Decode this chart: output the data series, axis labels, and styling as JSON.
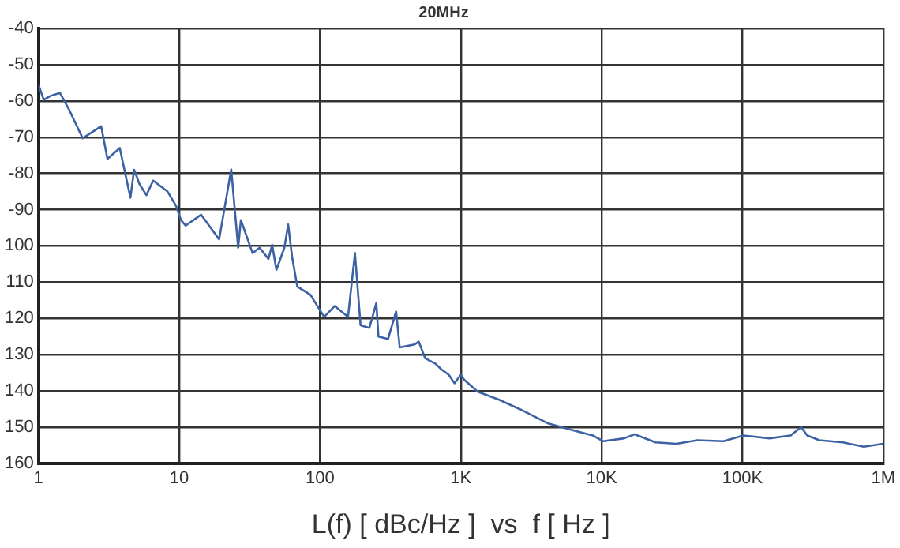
{
  "chart_data": {
    "type": "line",
    "title": "20MHz",
    "xlabel": "L(f) [ dBc/Hz ]  vs  f [ Hz ]",
    "log": "x",
    "grid": true,
    "legend": false,
    "marker": "none",
    "line_style": "solid",
    "xlim": [
      1,
      1000000
    ],
    "xticks": [
      1,
      10,
      100,
      {
        "value": 1000,
        "label": "1K"
      },
      {
        "value": 10000,
        "label": "10K"
      },
      {
        "value": 100000,
        "label": "100K"
      },
      {
        "value": 1000000,
        "label": "1M"
      }
    ],
    "ylim": [
      -160,
      -40
    ],
    "yticks": [
      -40,
      -50,
      -60,
      -70,
      -80,
      -90,
      {
        "value": -100,
        "label": "100"
      },
      {
        "value": -110,
        "label": "110"
      },
      {
        "value": -120,
        "label": "120"
      },
      {
        "value": -130,
        "label": "130"
      },
      {
        "value": -140,
        "label": "140"
      },
      {
        "value": -150,
        "label": "150"
      },
      {
        "value": -160,
        "label": "160"
      }
    ],
    "series": [
      {
        "color": "#3d62a3",
        "x": [
          1,
          1.09,
          1.22,
          1.42,
          1.65,
          2.06,
          2.79,
          3.09,
          3.78,
          4.5,
          4.78,
          5.2,
          5.84,
          6.53,
          8.26,
          9.5,
          10.3,
          11.1,
          14.3,
          19.2,
          23.4,
          26.2,
          27.4,
          33.2,
          37.2,
          43,
          45.7,
          49,
          55.8,
          59.4,
          63.2,
          68.9,
          85.5,
          107,
          127,
          158,
          177,
          194,
          224,
          251,
          260,
          304,
          347,
          368,
          470,
          502,
          558,
          661,
          724,
          822,
          901,
          1000,
          1060,
          1316,
          1854,
          2610,
          4180,
          6140,
          8650,
          10260,
          14450,
          17150,
          24150,
          34000,
          47900,
          73500,
          101600,
          156000,
          220000,
          261000,
          289000,
          352000,
          517000,
          728000,
          1000000
        ],
        "values": [
          -55.5,
          -59.7,
          -58.6,
          -57.8,
          -62.4,
          -70.3,
          -67,
          -76,
          -73,
          -86.7,
          -79,
          -82.8,
          -86,
          -82,
          -85,
          -89,
          -92.9,
          -94.4,
          -91.4,
          -98.2,
          -78.9,
          -100.5,
          -92.9,
          -102,
          -100.5,
          -103.6,
          -99.7,
          -106.6,
          -100.5,
          -94.1,
          -102.8,
          -111.2,
          -113.5,
          -119.6,
          -116.6,
          -119.6,
          -102,
          -121.9,
          -122.6,
          -115.8,
          -125,
          -125.7,
          -118.1,
          -128,
          -127.2,
          -126.4,
          -131,
          -132.5,
          -134,
          -135.6,
          -137.9,
          -135.6,
          -137,
          -140.2,
          -142.4,
          -145,
          -149,
          -150.8,
          -152.3,
          -153.9,
          -153.1,
          -152,
          -154.2,
          -154.6,
          -153.6,
          -153.9,
          -152.3,
          -153.1,
          -152.3,
          -150,
          -152.3,
          -153.6,
          -154.2,
          -155.4,
          -154.6
        ]
      }
    ]
  }
}
